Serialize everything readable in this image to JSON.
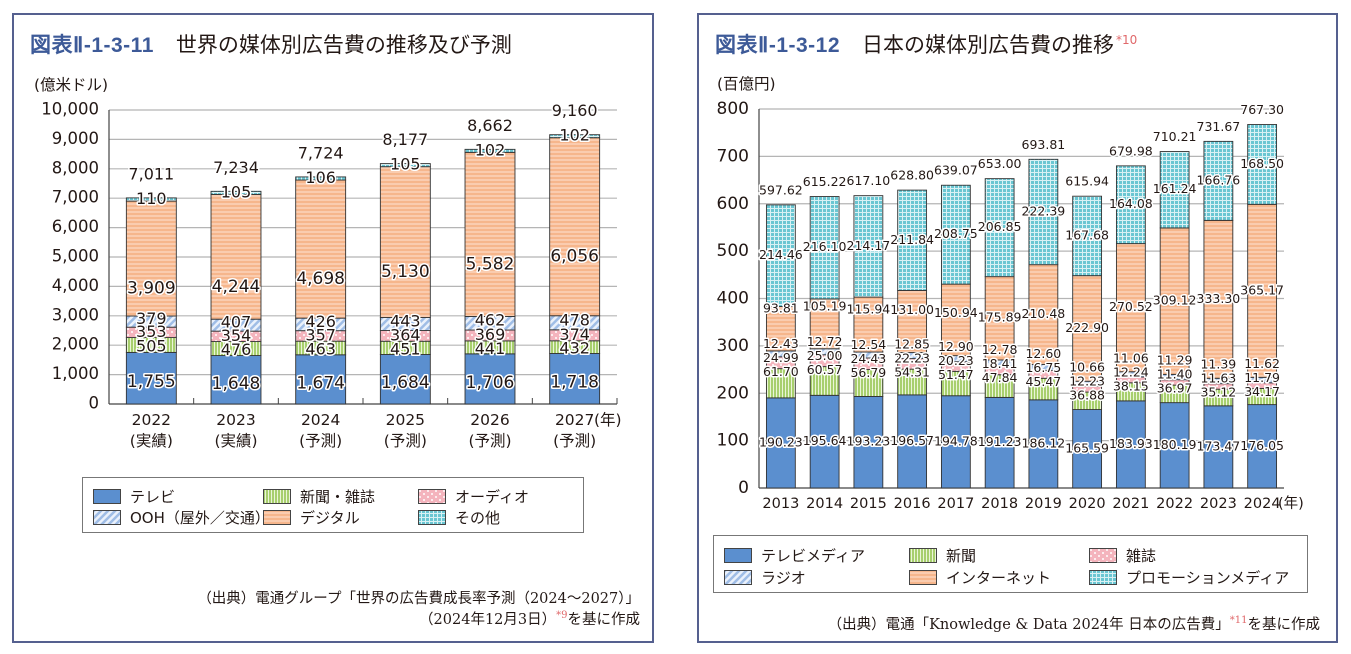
{
  "left": {
    "fig_number": "図表Ⅱ-1-3-11",
    "title": "世界の媒体別広告費の推移及び予測",
    "source_line1": "（出典）電通グループ「世界の広告費成長率予測（2024～2027）」",
    "source_line2_pre": "（2024年12月3日）",
    "source_ref": "*9",
    "source_line2_post": "を基に作成"
  },
  "right": {
    "fig_number": "図表Ⅱ-1-3-12",
    "title": "日本の媒体別広告費の推移",
    "title_ref": "*10",
    "source_pre": "（出典）電通「Knowledge & Data 2024年 日本の広告費」",
    "source_ref": "*11",
    "source_post": "を基に作成"
  },
  "chart_data": [
    {
      "type": "bar",
      "stacked": true,
      "title": "世界の媒体別広告費の推移及び予測",
      "ylabel": "(億米ドル)",
      "xlabel": "(年)",
      "ylim": [
        0,
        10000
      ],
      "yticks": [
        0,
        1000,
        2000,
        3000,
        4000,
        5000,
        6000,
        7000,
        8000,
        9000,
        10000
      ],
      "ytick_labels": [
        "0",
        "1,000",
        "2,000",
        "3,000",
        "4,000",
        "5,000",
        "6,000",
        "7,000",
        "8,000",
        "9,000",
        "10,000"
      ],
      "grid": true,
      "legend_position": "bottom",
      "categories": [
        "2022",
        "2023",
        "2024",
        "2025",
        "2026",
        "2027"
      ],
      "category_sublabels": [
        "(実績)",
        "(実績)",
        "(予測)",
        "(予測)",
        "(予測)",
        "(予測)"
      ],
      "totals": [
        7011,
        7234,
        7724,
        8177,
        8662,
        9160
      ],
      "total_labels": [
        "7,011",
        "7,234",
        "7,724",
        "8,177",
        "8,662",
        "9,160"
      ],
      "series": [
        {
          "name": "テレビ",
          "key": "tv",
          "color": "#5b8fcf",
          "pattern": "solid",
          "values": [
            1755,
            1648,
            1674,
            1684,
            1706,
            1718
          ],
          "labels": [
            "1,755",
            "1,648",
            "1,674",
            "1,684",
            "1,706",
            "1,718"
          ]
        },
        {
          "name": "新聞・雑誌",
          "key": "print",
          "color": "#a8cf6e",
          "pattern": "vstripe",
          "values": [
            505,
            476,
            463,
            451,
            441,
            432
          ],
          "labels": [
            "505",
            "476",
            "463",
            "451",
            "441",
            "432"
          ]
        },
        {
          "name": "オーディオ",
          "key": "audio",
          "color": "#f4b4bd",
          "pattern": "dots",
          "values": [
            353,
            354,
            357,
            364,
            369,
            374
          ],
          "labels": [
            "353",
            "354",
            "357",
            "364",
            "369",
            "374"
          ]
        },
        {
          "name": "OOH（屋外／交通）",
          "key": "ooh",
          "color": "#9fbde6",
          "pattern": "diag",
          "values": [
            379,
            407,
            426,
            443,
            462,
            478
          ],
          "labels": [
            "379",
            "407",
            "426",
            "443",
            "462",
            "478"
          ]
        },
        {
          "name": "デジタル",
          "key": "digital",
          "color": "#f6b68c",
          "pattern": "hstripe",
          "values": [
            3909,
            4244,
            4698,
            5130,
            5582,
            6056
          ],
          "labels": [
            "3,909",
            "4,244",
            "4,698",
            "5,130",
            "5,582",
            "6,056"
          ]
        },
        {
          "name": "その他",
          "key": "other",
          "color": "#6ac6d2",
          "pattern": "grid",
          "values": [
            110,
            105,
            106,
            105,
            102,
            102
          ],
          "labels": [
            "110",
            "105",
            "106",
            "105",
            "102",
            "102"
          ]
        }
      ],
      "legend_order": [
        "tv",
        "print",
        "audio",
        "ooh",
        "digital",
        "other"
      ]
    },
    {
      "type": "bar",
      "stacked": true,
      "title": "日本の媒体別広告費の推移",
      "ylabel": "(百億円)",
      "xlabel": "(年)",
      "ylim": [
        0,
        800
      ],
      "yticks": [
        0,
        100,
        200,
        300,
        400,
        500,
        600,
        700,
        800
      ],
      "ytick_labels": [
        "0",
        "100",
        "200",
        "300",
        "400",
        "500",
        "600",
        "700",
        "800"
      ],
      "grid": true,
      "legend_position": "bottom",
      "categories": [
        "2013",
        "2014",
        "2015",
        "2016",
        "2017",
        "2018",
        "2019",
        "2020",
        "2021",
        "2022",
        "2023",
        "2024"
      ],
      "totals": [
        597.62,
        615.22,
        617.1,
        628.8,
        639.07,
        653.0,
        693.81,
        615.94,
        679.98,
        710.21,
        731.67,
        767.3
      ],
      "total_labels": [
        "597.62",
        "615.22",
        "617.10",
        "628.80",
        "639.07",
        "653.00",
        "693.81",
        "615.94",
        "679.98",
        "710.21",
        "731.67",
        "767.30"
      ],
      "series": [
        {
          "name": "テレビメディア",
          "key": "tv",
          "color": "#5b8fcf",
          "pattern": "solid",
          "values": [
            190.23,
            195.64,
            193.23,
            196.57,
            194.78,
            191.23,
            186.12,
            165.59,
            183.93,
            180.19,
            173.47,
            176.05
          ],
          "labels": [
            "190.23",
            "195.64",
            "193.23",
            "196.57",
            "194.78",
            "191.23",
            "186.12",
            "165.59",
            "183.93",
            "180.19",
            "173.47",
            "176.05"
          ]
        },
        {
          "name": "新聞",
          "key": "newspaper",
          "color": "#a8cf6e",
          "pattern": "vstripe",
          "values": [
            61.7,
            60.57,
            56.79,
            54.31,
            51.47,
            47.84,
            45.47,
            36.88,
            38.15,
            36.97,
            35.12,
            34.17
          ],
          "labels": [
            "61.70",
            "60.57",
            "56.79",
            "54.31",
            "51.47",
            "47.84",
            "45.47",
            "36.88",
            "38.15",
            "36.97",
            "35.12",
            "34.17"
          ]
        },
        {
          "name": "雑誌",
          "key": "magazine",
          "color": "#f4b4bd",
          "pattern": "dots",
          "values": [
            24.99,
            25.0,
            24.43,
            22.23,
            20.23,
            18.41,
            16.75,
            12.23,
            12.24,
            11.4,
            11.63,
            11.79
          ],
          "labels": [
            "24.99",
            "25.00",
            "24.43",
            "22.23",
            "20.23",
            "18.41",
            "16.75",
            "12.23",
            "12.24",
            "11.40",
            "11.63",
            "11.79"
          ]
        },
        {
          "name": "ラジオ",
          "key": "radio",
          "color": "#9fbde6",
          "pattern": "diag",
          "values": [
            12.43,
            12.72,
            12.54,
            12.85,
            12.9,
            12.78,
            12.6,
            10.66,
            11.06,
            11.29,
            11.39,
            11.62
          ],
          "labels": [
            "12.43",
            "12.72",
            "12.54",
            "12.85",
            "12.90",
            "12.78",
            "12.60",
            "10.66",
            "11.06",
            "11.29",
            "11.39",
            "11.62"
          ]
        },
        {
          "name": "インターネット",
          "key": "internet",
          "color": "#f6b68c",
          "pattern": "hstripe",
          "values": [
            93.81,
            105.19,
            115.94,
            131.0,
            150.94,
            175.89,
            210.48,
            222.9,
            270.52,
            309.12,
            333.3,
            365.17
          ],
          "labels": [
            "93.81",
            "105.19",
            "115.94",
            "131.00",
            "150.94",
            "175.89",
            "210.48",
            "222.90",
            "270.52",
            "309.12",
            "333.30",
            "365.17"
          ]
        },
        {
          "name": "プロモーションメディア",
          "key": "promo",
          "color": "#6ac6d2",
          "pattern": "grid",
          "values": [
            214.46,
            216.1,
            214.17,
            211.84,
            208.75,
            206.85,
            222.39,
            167.68,
            164.08,
            161.24,
            166.76,
            168.5
          ],
          "labels": [
            "214.46",
            "216.10",
            "214.17",
            "211.84",
            "208.75",
            "206.85",
            "222.39",
            "167.68",
            "164.08",
            "161.24",
            "166.76",
            "168.50"
          ]
        }
      ],
      "legend_order": [
        "tv",
        "newspaper",
        "magazine",
        "radio",
        "internet",
        "promo"
      ]
    }
  ]
}
